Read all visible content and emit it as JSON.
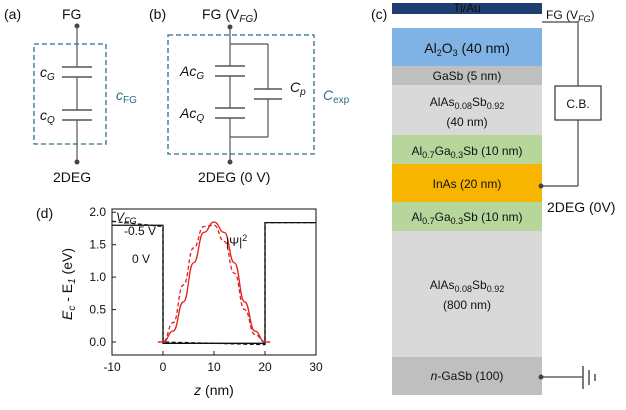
{
  "panel_a": {
    "label": "(a)",
    "top": "FG",
    "cg": "c",
    "cg_sub": "G",
    "cq": "c",
    "cq_sub": "Q",
    "cfg": "c",
    "cfg_sub": "FG",
    "bottom": "2DEG"
  },
  "panel_b": {
    "label": "(b)",
    "top": "FG (V",
    "top_sub": "FG",
    "top_end": ")",
    "acg": "Ac",
    "acg_sub": "G",
    "acq": "Ac",
    "acq_sub": "Q",
    "cp": "C",
    "cp_sub": "p",
    "cexp": "C",
    "cexp_sub": "exp",
    "bottom": "2DEG (0 V)"
  },
  "panel_c": {
    "label": "(c)",
    "fg": "FG (V",
    "fg_sub": "FG",
    "fg_end": ")",
    "cb": "C.B.",
    "twodeg": "2DEG (0V)",
    "layers": [
      {
        "name": "Ti/Au",
        "color": "#1f3f73",
        "text_color": "#ffffff"
      },
      {
        "name": "Al2O3 (40 nm)",
        "color": "#7fb3e6",
        "text_color": "#111111"
      },
      {
        "name": "GaSb (5 nm)",
        "color": "#bfbfbf",
        "text_color": "#111111"
      },
      {
        "name": "AlAs0.08Sb0.92 (40 nm)",
        "color": "#d9d9d9",
        "text_color": "#111111"
      },
      {
        "name": "Al0.7Ga0.3Sb (10 nm)",
        "color": "#b6d69b",
        "text_color": "#111111"
      },
      {
        "name": "InAs (20 nm)",
        "color": "#f7b500",
        "text_color": "#111111"
      },
      {
        "name": "Al0.7Ga0.3Sb (10 nm)",
        "color": "#b6d69b",
        "text_color": "#111111"
      },
      {
        "name": "AlAs0.08Sb0.92 (800 nm)",
        "color": "#d9d9d9",
        "text_color": "#111111"
      },
      {
        "name": "n-GaSb (100)",
        "color": "#bfbfbf",
        "text_color": "#111111"
      }
    ]
  },
  "panel_d": {
    "label": "(d)",
    "vfg": "V",
    "vfg_sub": "FG",
    "v1": "-0.5 V",
    "v2": "0 V",
    "psi": "|Ψ|",
    "psi_sup": "2",
    "xlabel": "z",
    "xlabel_unit": " (nm)",
    "ylabel": "E",
    "ylabel_sub1": "c",
    "ylabel_mid": " - E",
    "ylabel_sub2": "1",
    "ylabel_unit": " (eV)"
  },
  "chart_data": {
    "type": "line",
    "title": "",
    "xlabel": "z (nm)",
    "ylabel": "Ec - E1 (eV)",
    "xlim": [
      -10,
      30
    ],
    "ylim": [
      -0.2,
      2.05
    ],
    "xticks": [
      -10,
      0,
      10,
      20,
      30
    ],
    "yticks": [
      0.0,
      0.5,
      1.0,
      1.5,
      2.0
    ],
    "tick_labels_x": [
      "-10",
      "0",
      "10",
      "20",
      "30"
    ],
    "tick_labels_y": [
      "0.0",
      "0.5",
      "1.0",
      "1.5",
      "2.0"
    ],
    "series": [
      {
        "name": "0 V",
        "style": "solid black",
        "x": [
          -10,
          0,
          0,
          20,
          20,
          30
        ],
        "y": [
          1.8,
          1.8,
          -0.02,
          -0.02,
          1.84,
          1.84
        ]
      },
      {
        "name": "-0.5 V",
        "style": "dashed black",
        "x": [
          -10,
          0,
          0,
          20,
          20,
          30
        ],
        "y": [
          1.86,
          1.78,
          0.0,
          -0.04,
          1.84,
          1.84
        ]
      },
      {
        "name": "|Ψ|2 (0 V)",
        "style": "solid red",
        "x": [
          -1,
          0,
          2,
          4,
          6,
          8,
          10,
          12,
          14,
          16,
          18,
          20,
          21
        ],
        "y": [
          0.0,
          0.0,
          0.17,
          0.62,
          1.22,
          1.69,
          1.85,
          1.69,
          1.22,
          0.62,
          0.17,
          0.0,
          0.0
        ]
      },
      {
        "name": "|Ψ|2 (-0.5 V)",
        "style": "dashed red",
        "x": [
          -1,
          0,
          2,
          4,
          6,
          8,
          10,
          12,
          14,
          16,
          18,
          20,
          21
        ],
        "y": [
          0.0,
          0.0,
          0.3,
          0.88,
          1.45,
          1.78,
          1.8,
          1.55,
          1.06,
          0.5,
          0.12,
          0.0,
          0.0
        ]
      }
    ]
  }
}
